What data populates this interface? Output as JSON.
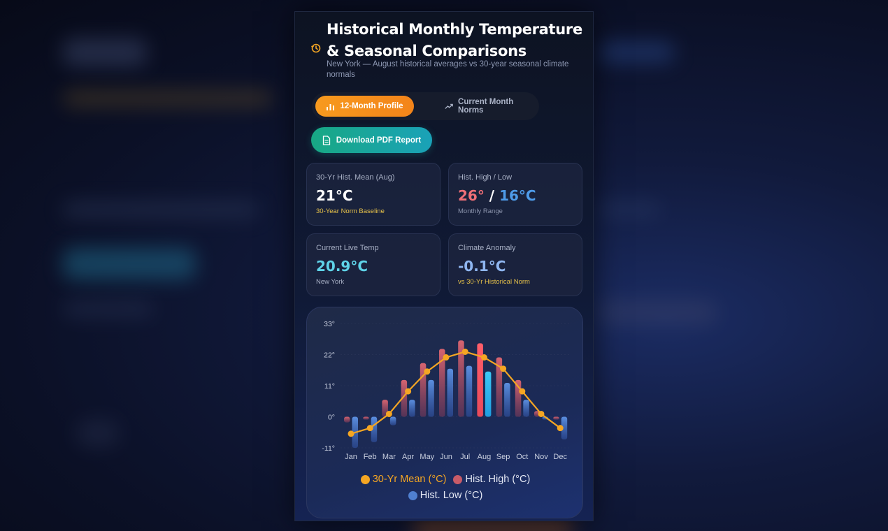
{
  "header": {
    "title": "Historical Monthly Temperature & Seasonal Comparisons",
    "subtitle": "New York — August historical averages vs 30-year seasonal climate normals"
  },
  "tabs": [
    {
      "label": "12-Month Profile",
      "active": true
    },
    {
      "label": "Current Month Norms",
      "active": false
    }
  ],
  "download_button": {
    "label": "Download PDF Report"
  },
  "stats": {
    "mean": {
      "label": "30-Yr Hist. Mean (Aug)",
      "value": "21°C",
      "note": "30-Year Norm Baseline"
    },
    "highlow": {
      "label": "Hist. High / Low",
      "high": "26°",
      "sep": " / ",
      "low": "16°C",
      "note": "Monthly Range"
    },
    "live": {
      "label": "Current Live Temp",
      "value": "20.9°C",
      "note": "New York"
    },
    "anomaly": {
      "label": "Climate Anomaly",
      "value": "-0.1°C",
      "note": "vs 30-Yr Historical Norm"
    }
  },
  "colors": {
    "accent_orange": "#f59e1a",
    "high_red": "#e8616a",
    "low_blue": "#4f86d9",
    "live_cyan": "#5fd3e8",
    "anomaly_blue": "#8fb6f0",
    "note_yellow": "#e7c24a"
  },
  "icons": {
    "header": "history-clock-icon",
    "tab1": "bar-chart-icon",
    "tab2": "trend-up-icon",
    "download": "document-icon"
  },
  "chart_data": {
    "type": "bar",
    "categories": [
      "Jan",
      "Feb",
      "Mar",
      "Apr",
      "May",
      "Jun",
      "Jul",
      "Aug",
      "Sep",
      "Oct",
      "Nov",
      "Dec"
    ],
    "yticks": [
      "33°",
      "22°",
      "11°",
      "0°",
      "-11°"
    ],
    "ylim": [
      -11,
      33
    ],
    "highlight_category": "Aug",
    "grid": true,
    "legend_position": "bottom",
    "series": [
      {
        "name": "30-Yr Mean (°C)",
        "kind": "line",
        "color": "#f5a623",
        "values": [
          -6,
          -4,
          1,
          9,
          16,
          21,
          23,
          21,
          17,
          9,
          1,
          -4
        ]
      },
      {
        "name": "Hist. High (°C)",
        "kind": "bar",
        "color": "#e8616a",
        "values": [
          -2,
          -1,
          6,
          13,
          19,
          24,
          27,
          26,
          21,
          13,
          2,
          -1
        ]
      },
      {
        "name": "Hist. Low (°C)",
        "kind": "bar",
        "color": "#4f86d9",
        "values": [
          -11,
          -9,
          -3,
          6,
          13,
          17,
          18,
          16,
          12,
          6,
          -1,
          -8
        ]
      }
    ]
  }
}
